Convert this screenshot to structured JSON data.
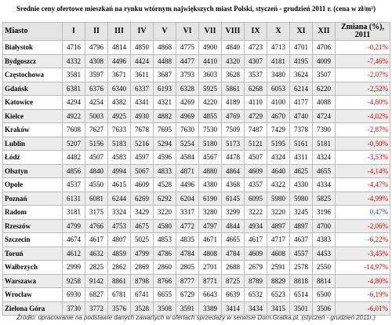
{
  "title": "Srednie ceny ofertowe mieszkań na rynku wtórnym największych miast Polski, styczeń - grudzień 2011 r. (cena w zł/m²)",
  "table": {
    "header": [
      "Miasto",
      "I",
      "II",
      "III",
      "IV",
      "V",
      "VI",
      "VII",
      "VIII",
      "IX",
      "X",
      "XI",
      "XII",
      "Zmiana (%), 2011"
    ],
    "rows": [
      [
        "Białystok",
        4716,
        4796,
        4814,
        4850,
        4868,
        4775,
        4900,
        4840,
        4723,
        4713,
        4701,
        4706,
        "-0,21%"
      ],
      [
        "Bydgoszcz",
        4332,
        4308,
        4496,
        4424,
        4488,
        4477,
        4410,
        4320,
        4307,
        4181,
        4195,
        4009,
        "-7,46%"
      ],
      [
        "Częstochowa",
        3581,
        3597,
        3671,
        3611,
        3687,
        3793,
        3603,
        3628,
        3537,
        3480,
        3624,
        3507,
        "-2,07%"
      ],
      [
        "Gdańsk",
        6381,
        6376,
        6340,
        6337,
        6193,
        6328,
        5925,
        5861,
        6268,
        6053,
        6214,
        6220,
        "-2,52%"
      ],
      [
        "Katowice",
        4294,
        4254,
        4382,
        4341,
        4321,
        4269,
        4220,
        4189,
        4110,
        4100,
        4177,
        4088,
        "-4,80%"
      ],
      [
        "Kielce",
        4922,
        5003,
        4925,
        4930,
        4882,
        4969,
        4855,
        4769,
        4729,
        4670,
        4740,
        4724,
        "-4,02%"
      ],
      [
        "Kraków",
        7608,
        7627,
        7633,
        7678,
        7695,
        7630,
        7530,
        7509,
        7487,
        7429,
        7378,
        7390,
        "-2,87%"
      ],
      [
        "Lublin",
        5207,
        5156,
        5183,
        5216,
        5294,
        5254,
        5180,
        5173,
        5121,
        5195,
        5161,
        5181,
        "-0,50%"
      ],
      [
        "Łódź",
        4482,
        4507,
        4583,
        4597,
        4596,
        4584,
        4567,
        4478,
        4507,
        4324,
        4311,
        4324,
        "-3,53%"
      ],
      [
        "Olsztyn",
        4856,
        4840,
        4994,
        5067,
        4833,
        4871,
        4880,
        4864,
        4609,
        4640,
        4625,
        4655,
        "-4,14%"
      ],
      [
        "Opole",
        4537,
        4550,
        4615,
        4609,
        4528,
        4496,
        4380,
        4368,
        4357,
        4322,
        4330,
        4334,
        "-4,47%"
      ],
      [
        "Poznań",
        6131,
        6081,
        6244,
        6269,
        6292,
        6204,
        6190,
        6145,
        6095,
        5980,
        5980,
        5825,
        "-4,99%"
      ],
      [
        "Radom",
        3181,
        3175,
        3324,
        3429,
        3220,
        3317,
        3280,
        3299,
        3222,
        3220,
        3245,
        3196,
        "0,47%"
      ],
      [
        "Rzeszów",
        4799,
        4766,
        4753,
        4675,
        4580,
        4772,
        4797,
        4844,
        4934,
        4897,
        4897,
        4700,
        "-2,06%"
      ],
      [
        "Szczecin",
        4674,
        4617,
        4807,
        5025,
        4853,
        4835,
        4671,
        4665,
        4617,
        4717,
        4637,
        4383,
        "-6,22%"
      ],
      [
        "Toruń",
        4612,
        4632,
        4859,
        4799,
        4786,
        4784,
        4808,
        4784,
        4609,
        4608,
        4557,
        4453,
        "-3,45%"
      ],
      [
        "Wałbrzych",
        2999,
        2825,
        2862,
        2869,
        2860,
        2805,
        2701,
        2688,
        2679,
        2591,
        2578,
        2550,
        "-14,97%"
      ],
      [
        "Warszawa",
        9258,
        9142,
        8861,
        8798,
        8766,
        8777,
        8771,
        8725,
        8789,
        8829,
        8818,
        8814,
        "-4,80%"
      ],
      [
        "Wrocław",
        6930,
        6827,
        6781,
        6741,
        6655,
        6729,
        6643,
        6639,
        6532,
        6523,
        6514,
        6500,
        "-6,19%"
      ],
      [
        "Zielona Góra",
        3730,
        3772,
        3576,
        3528,
        3508,
        3591,
        3389,
        3414,
        3434,
        3415,
        3501,
        3506,
        "-6,01%"
      ]
    ]
  },
  "source": "Źródło: opracowanie na podstawie danych zawartych w ofertach sprzedaży w serwisie Dom.Gratka.pl, (styczeń - grudzień 2011r.)"
}
